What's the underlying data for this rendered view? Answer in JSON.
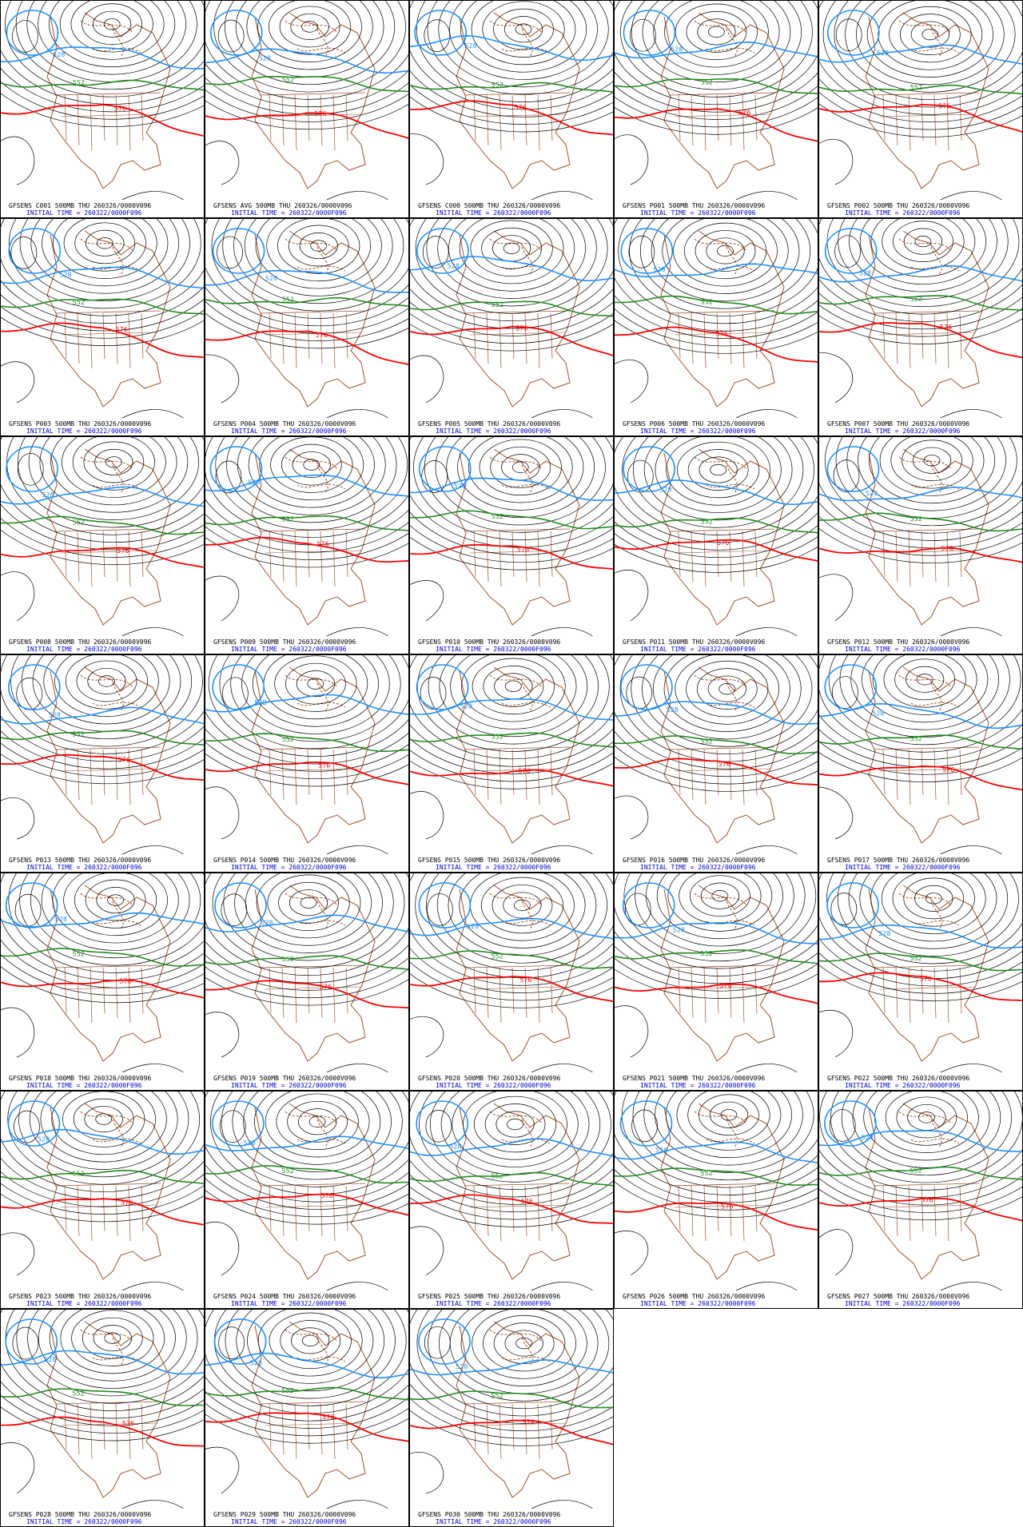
{
  "panels": [
    {
      "title": "GFSENS C001 500MB THU 260326/0000V096",
      "initial_time": "INITIAL TIME = 260322/0000F096",
      "contour_labels": [
        "528",
        "552",
        "576"
      ]
    },
    {
      "title": "GFSENS AVG 500MB THU 260326/0000V096",
      "initial_time": "INITIAL TIME = 260322/0000F096",
      "contour_labels": [
        "528",
        "552",
        "576"
      ]
    },
    {
      "title": "GFSENS C000 500MB THU 260326/0000V096",
      "initial_time": "INITIAL TIME = 260322/0000F096",
      "contour_labels": [
        "528",
        "552",
        "576"
      ]
    },
    {
      "title": "GFSENS P001 500MB THU 260326/0000V096",
      "initial_time": "INITIAL TIME = 260322/0000F096",
      "contour_labels": [
        "528",
        "552",
        "576"
      ]
    },
    {
      "title": "GFSENS P002 500MB THU 260326/0000V096",
      "initial_time": "INITIAL TIME = 260322/0000F096",
      "contour_labels": [
        "528",
        "552",
        "576"
      ]
    },
    {
      "title": "GFSENS P003 500MB THU 260326/0000V096",
      "initial_time": "INITIAL TIME = 260322/0000F096",
      "contour_labels": [
        "528",
        "552",
        "576"
      ]
    },
    {
      "title": "GFSENS P004 500MB THU 260326/0000V096",
      "initial_time": "INITIAL TIME = 260322/0000F096",
      "contour_labels": [
        "528",
        "552",
        "576"
      ]
    },
    {
      "title": "GFSENS P005 500MB THU 260326/0000V096",
      "initial_time": "INITIAL TIME = 260322/0000F096",
      "contour_labels": [
        "528",
        "552",
        "576"
      ]
    },
    {
      "title": "GFSENS P006 500MB THU 260326/0000V096",
      "initial_time": "INITIAL TIME = 260322/0000F096",
      "contour_labels": [
        "528",
        "552",
        "576"
      ]
    },
    {
      "title": "GFSENS P007 500MB THU 260326/0000V096",
      "initial_time": "INITIAL TIME = 260322/0000F096",
      "contour_labels": [
        "528",
        "552",
        "576"
      ]
    },
    {
      "title": "GFSENS P008 500MB THU 260326/0000V096",
      "initial_time": "INITIAL TIME = 260322/0000F096",
      "contour_labels": [
        "528",
        "552",
        "576"
      ]
    },
    {
      "title": "GFSENS P009 500MB THU 260326/0000V096",
      "initial_time": "INITIAL TIME = 260322/0000F096",
      "contour_labels": [
        "528",
        "552",
        "576"
      ]
    },
    {
      "title": "GFSENS P010 500MB THU 260326/0000V096",
      "initial_time": "INITIAL TIME = 260322/0000F096",
      "contour_labels": [
        "528",
        "552",
        "576"
      ]
    },
    {
      "title": "GFSENS P011 500MB THU 260326/0000V096",
      "initial_time": "INITIAL TIME = 260322/0000F096",
      "contour_labels": [
        "528",
        "552",
        "576"
      ]
    },
    {
      "title": "GFSENS P012 500MB THU 260326/0000V096",
      "initial_time": "INITIAL TIME = 260322/0000F096",
      "contour_labels": [
        "528",
        "552",
        "576"
      ]
    },
    {
      "title": "GFSENS P013 500MB THU 260326/0000V096",
      "initial_time": "INITIAL TIME = 260322/0000F096",
      "contour_labels": [
        "528",
        "552",
        "576"
      ]
    },
    {
      "title": "GFSENS P014 500MB THU 260326/0000V096",
      "initial_time": "INITIAL TIME = 260322/0000F096",
      "contour_labels": [
        "528",
        "552",
        "576"
      ]
    },
    {
      "title": "GFSENS P015 500MB THU 260326/0000V096",
      "initial_time": "INITIAL TIME = 260322/0000F096",
      "contour_labels": [
        "528",
        "552",
        "576"
      ]
    },
    {
      "title": "GFSENS P016 500MB THU 260326/0000V096",
      "initial_time": "INITIAL TIME = 260322/0000F096",
      "contour_labels": [
        "528",
        "552",
        "576"
      ]
    },
    {
      "title": "GFSENS P017 500MB THU 260326/0000V096",
      "initial_time": "INITIAL TIME = 260322/0000F096",
      "contour_labels": [
        "528",
        "552",
        "576"
      ]
    },
    {
      "title": "GFSENS P018 500MB THU 260326/0000V096",
      "initial_time": "INITIAL TIME = 260322/0000F096",
      "contour_labels": [
        "528",
        "552",
        "576"
      ]
    },
    {
      "title": "GFSENS P019 500MB THU 260326/0000V096",
      "initial_time": "INITIAL TIME = 260322/0000F096",
      "contour_labels": [
        "528",
        "552",
        "576"
      ]
    },
    {
      "title": "GFSENS P020 500MB THU 260326/0000V096",
      "initial_time": "INITIAL TIME = 260322/0000F096",
      "contour_labels": [
        "528",
        "552",
        "576"
      ]
    },
    {
      "title": "GFSENS P021 500MB THU 260326/0000V096",
      "initial_time": "INITIAL TIME = 260322/0000F096",
      "contour_labels": [
        "528",
        "552",
        "576"
      ]
    },
    {
      "title": "GFSENS P022 500MB THU 260326/0000V096",
      "initial_time": "INITIAL TIME = 260322/0000F096",
      "contour_labels": [
        "528",
        "552",
        "576"
      ]
    },
    {
      "title": "GFSENS P023 500MB THU 260326/0000V096",
      "initial_time": "INITIAL TIME = 260322/0000F096",
      "contour_labels": [
        "528",
        "552",
        "576"
      ]
    },
    {
      "title": "GFSENS P024 500MB THU 260326/0000V096",
      "initial_time": "INITIAL TIME = 260322/0000F096",
      "contour_labels": [
        "528",
        "552",
        "576"
      ]
    },
    {
      "title": "GFSENS P025 500MB THU 260326/0000V096",
      "initial_time": "INITIAL TIME = 260322/0000F096",
      "contour_labels": [
        "528",
        "552",
        "576"
      ]
    },
    {
      "title": "GFSENS P026 500MB THU 260326/0000V096",
      "initial_time": "INITIAL TIME = 260322/0000F096",
      "contour_labels": [
        "528",
        "552",
        "576"
      ]
    },
    {
      "title": "GFSENS P027 500MB THU 260326/0000V096",
      "initial_time": "INITIAL TIME = 260322/0000F096",
      "contour_labels": [
        "528",
        "552",
        "576"
      ]
    },
    {
      "title": "GFSENS P028 500MB THU 260326/0000V096",
      "initial_time": "INITIAL TIME = 260322/0000F096",
      "contour_labels": [
        "528",
        "552",
        "576"
      ]
    },
    {
      "title": "GFSENS P029 500MB THU 260326/0000V096",
      "initial_time": "INITIAL TIME = 260322/0000F096",
      "contour_labels": [
        "528",
        "552",
        "576"
      ]
    },
    {
      "title": "GFSENS P030 500MB THU 260326/0000V096",
      "initial_time": "INITIAL TIME = 260322/0000F096",
      "contour_labels": [
        "528",
        "552",
        "576"
      ]
    }
  ]
}
